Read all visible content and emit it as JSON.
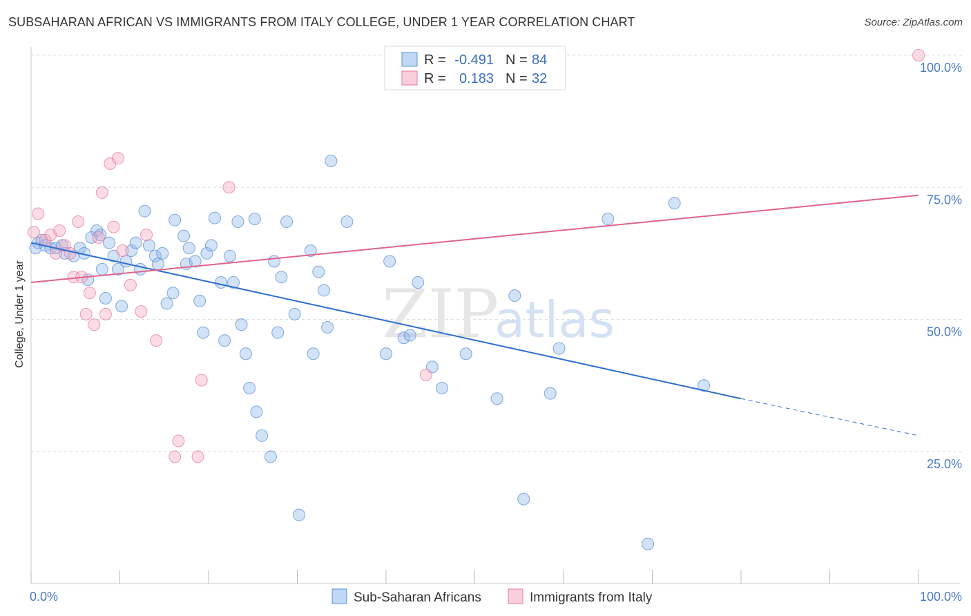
{
  "header": {
    "title": "SUBSAHARAN AFRICAN VS IMMIGRANTS FROM ITALY COLLEGE, UNDER 1 YEAR CORRELATION CHART",
    "source": "Source: ZipAtlas.com"
  },
  "watermark": {
    "part1": "ZIP",
    "part2": "atlas"
  },
  "legend": {
    "r_label": "R =",
    "n_label": "N =",
    "rows": [
      {
        "r": "-0.491",
        "n": "84",
        "color": "#8fb6ea"
      },
      {
        "r": "0.183",
        "n": "32",
        "color": "#f4a7bf"
      }
    ]
  },
  "bottom_legend": [
    {
      "label": "Sub-Saharan Africans",
      "color": "#8fb6ea"
    },
    {
      "label": "Immigrants from Italy",
      "color": "#f4a7bf"
    }
  ],
  "chart_data": {
    "type": "scatter",
    "title": "SUBSAHARAN AFRICAN VS IMMIGRANTS FROM ITALY COLLEGE, UNDER 1 YEAR CORRELATION CHART",
    "xlabel": "",
    "ylabel": "College, Under 1 year",
    "xlim": [
      0,
      100
    ],
    "ylim": [
      0,
      100
    ],
    "x_tick_labels": [
      "0.0%",
      "100.0%"
    ],
    "y_tick_labels": [
      "25.0%",
      "50.0%",
      "75.0%",
      "100.0%"
    ],
    "y_ticks": [
      25,
      50,
      75,
      100
    ],
    "series": [
      {
        "name": "Sub-Saharan Africans",
        "color": "#8fb6ea",
        "stroke": "#5b8fd6",
        "r": -0.491,
        "n": 84,
        "trend": {
          "x0": 0,
          "y0": 64.5,
          "x1": 80,
          "y1": 35,
          "dash_to": 100,
          "dash_y": 28
        },
        "points": [
          [
            0.5,
            63.5
          ],
          [
            0.8,
            64.5
          ],
          [
            1.2,
            65
          ],
          [
            1.6,
            64
          ],
          [
            2.2,
            63.5
          ],
          [
            2.8,
            63.5
          ],
          [
            3.5,
            64
          ],
          [
            3.8,
            62.5
          ],
          [
            4.8,
            62
          ],
          [
            5.5,
            63.5
          ],
          [
            6,
            62.5
          ],
          [
            6.4,
            57.5
          ],
          [
            6.8,
            65.5
          ],
          [
            7.4,
            66.8
          ],
          [
            7.8,
            66
          ],
          [
            8,
            59.5
          ],
          [
            8.4,
            54
          ],
          [
            8.8,
            64.5
          ],
          [
            9.3,
            62
          ],
          [
            9.8,
            59.5
          ],
          [
            10.2,
            52.5
          ],
          [
            10.7,
            61
          ],
          [
            11.3,
            63
          ],
          [
            11.8,
            64.5
          ],
          [
            12.3,
            59.5
          ],
          [
            12.8,
            70.5
          ],
          [
            13.3,
            64
          ],
          [
            14,
            62
          ],
          [
            14.3,
            60.5
          ],
          [
            14.8,
            62.5
          ],
          [
            15.3,
            53
          ],
          [
            16,
            55
          ],
          [
            16.2,
            68.8
          ],
          [
            17.2,
            65.8
          ],
          [
            17.5,
            60.5
          ],
          [
            17.8,
            63.5
          ],
          [
            18.5,
            61
          ],
          [
            19,
            53.5
          ],
          [
            19.4,
            47.5
          ],
          [
            19.8,
            62.5
          ],
          [
            20.3,
            64
          ],
          [
            20.7,
            69.2
          ],
          [
            21.4,
            57
          ],
          [
            21.8,
            46
          ],
          [
            22.4,
            62
          ],
          [
            22.8,
            57
          ],
          [
            23.3,
            68.5
          ],
          [
            23.7,
            49
          ],
          [
            24.2,
            43.5
          ],
          [
            24.6,
            37
          ],
          [
            25.2,
            69
          ],
          [
            25.4,
            32.5
          ],
          [
            26,
            28
          ],
          [
            27,
            24
          ],
          [
            27.4,
            61
          ],
          [
            27.8,
            47.5
          ],
          [
            28.2,
            58
          ],
          [
            28.8,
            68.5
          ],
          [
            29.7,
            51
          ],
          [
            30.2,
            13
          ],
          [
            31.5,
            63
          ],
          [
            31.8,
            43.5
          ],
          [
            32.4,
            59
          ],
          [
            33,
            55.5
          ],
          [
            33.4,
            48.5
          ],
          [
            33.8,
            80
          ],
          [
            35.6,
            68.5
          ],
          [
            40,
            43.5
          ],
          [
            40.4,
            61
          ],
          [
            42,
            46.5
          ],
          [
            42.7,
            47
          ],
          [
            43.6,
            57
          ],
          [
            45.2,
            41
          ],
          [
            46.3,
            37
          ],
          [
            49,
            43.5
          ],
          [
            52.5,
            35
          ],
          [
            54.5,
            54.5
          ],
          [
            55.5,
            16
          ],
          [
            58.5,
            36
          ],
          [
            59.5,
            44.5
          ],
          [
            65,
            69
          ],
          [
            69.5,
            7.5
          ],
          [
            72.5,
            72
          ],
          [
            75.8,
            37.5
          ]
        ]
      },
      {
        "name": "Immigrants from Italy",
        "color": "#f4a7bf",
        "stroke": "#e57a9c",
        "r": 0.183,
        "n": 32,
        "trend": {
          "x0": 0,
          "y0": 57,
          "x1": 100,
          "y1": 73.5
        },
        "points": [
          [
            0.3,
            66.5
          ],
          [
            0.8,
            70
          ],
          [
            1.6,
            65
          ],
          [
            2.2,
            66
          ],
          [
            2.8,
            62.5
          ],
          [
            3.2,
            66.8
          ],
          [
            3.8,
            64
          ],
          [
            4.4,
            62.5
          ],
          [
            4.8,
            58
          ],
          [
            5.3,
            68.5
          ],
          [
            5.7,
            58
          ],
          [
            6.2,
            51
          ],
          [
            6.6,
            55
          ],
          [
            7.1,
            49
          ],
          [
            7.6,
            65.5
          ],
          [
            8,
            74
          ],
          [
            8.4,
            51
          ],
          [
            8.9,
            79.5
          ],
          [
            9.3,
            67.5
          ],
          [
            9.8,
            80.5
          ],
          [
            10.3,
            63
          ],
          [
            11.2,
            56.5
          ],
          [
            12.4,
            51.5
          ],
          [
            13,
            66
          ],
          [
            14.1,
            46
          ],
          [
            16.2,
            24
          ],
          [
            16.6,
            27
          ],
          [
            18.8,
            24
          ],
          [
            19.2,
            38.5
          ],
          [
            22.3,
            75
          ],
          [
            44.5,
            39.5
          ],
          [
            100,
            100
          ]
        ]
      }
    ]
  }
}
